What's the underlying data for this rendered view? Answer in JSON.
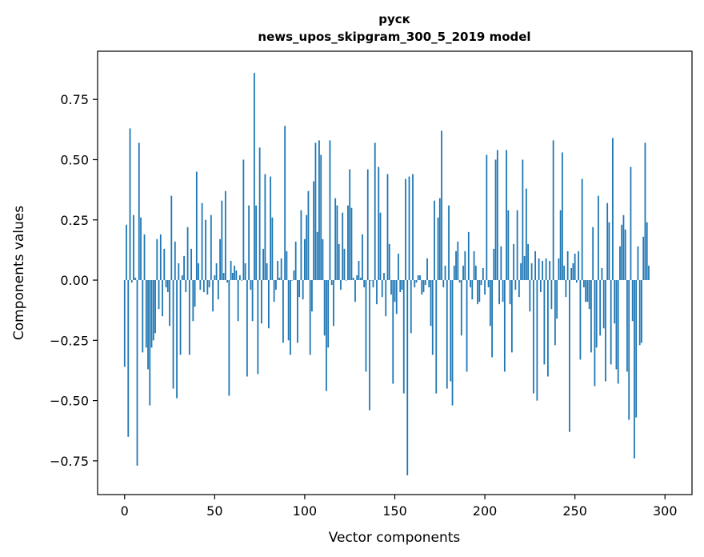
{
  "chart_data": {
    "type": "bar",
    "title": "руск",
    "subtitle": "news_upos_skipgram_300_5_2019 model",
    "xlabel": "Vector components",
    "ylabel": "Components values",
    "xlim": [
      -15,
      315
    ],
    "ylim": [
      -0.89,
      0.95
    ],
    "xticks": [
      0,
      50,
      100,
      150,
      200,
      250,
      300
    ],
    "yticks": [
      -0.75,
      -0.5,
      -0.25,
      0.0,
      0.25,
      0.5,
      0.75
    ],
    "xtick_labels": [
      "0",
      "50",
      "100",
      "150",
      "200",
      "250",
      "300"
    ],
    "ytick_labels": [
      "−0.75",
      "−0.50",
      "−0.25",
      "0.00",
      "0.25",
      "0.50",
      "0.75"
    ],
    "bar_color": "#1f77b4",
    "grid": false,
    "values": [
      -0.36,
      0.23,
      -0.65,
      0.63,
      -0.01,
      0.27,
      0.01,
      -0.77,
      0.57,
      0.26,
      -0.3,
      0.19,
      -0.28,
      -0.37,
      -0.52,
      -0.28,
      -0.25,
      -0.22,
      0.17,
      -0.12,
      0.19,
      -0.15,
      0.13,
      -0.03,
      -0.05,
      -0.19,
      0.35,
      -0.45,
      0.16,
      -0.49,
      0.07,
      -0.31,
      0.02,
      0.1,
      -0.05,
      0.22,
      -0.31,
      0.13,
      -0.17,
      -0.11,
      0.45,
      0.07,
      -0.04,
      0.32,
      -0.05,
      0.25,
      -0.06,
      -0.03,
      0.27,
      -0.13,
      0.02,
      0.07,
      -0.08,
      0.17,
      0.33,
      0.03,
      0.37,
      -0.01,
      -0.48,
      0.08,
      0.03,
      0.06,
      0.04,
      -0.17,
      0.02,
      0.0,
      0.5,
      0.07,
      -0.4,
      0.31,
      -0.04,
      -0.17,
      0.86,
      0.31,
      -0.39,
      0.55,
      -0.18,
      0.13,
      0.44,
      0.07,
      -0.2,
      0.43,
      0.26,
      -0.09,
      -0.04,
      0.08,
      0.01,
      0.09,
      -0.26,
      0.64,
      0.12,
      -0.25,
      -0.31,
      0.0,
      0.04,
      0.16,
      -0.26,
      -0.07,
      0.29,
      -0.08,
      0.17,
      0.27,
      0.37,
      -0.31,
      -0.13,
      0.41,
      0.57,
      0.2,
      0.58,
      0.52,
      0.17,
      -0.23,
      -0.46,
      -0.28,
      0.58,
      -0.02,
      -0.19,
      0.34,
      0.31,
      0.15,
      -0.04,
      0.28,
      0.13,
      0.0,
      0.31,
      0.46,
      0.3,
      0.01,
      -0.09,
      0.02,
      0.08,
      0.01,
      0.19,
      -0.03,
      -0.38,
      0.46,
      -0.54,
      0.0,
      -0.03,
      0.57,
      -0.1,
      0.47,
      0.28,
      -0.07,
      0.03,
      -0.15,
      0.44,
      0.15,
      -0.06,
      -0.43,
      -0.09,
      -0.14,
      0.11,
      -0.05,
      -0.04,
      -0.47,
      0.42,
      -0.81,
      0.43,
      -0.22,
      0.44,
      -0.03,
      -0.01,
      0.02,
      0.02,
      -0.06,
      -0.05,
      -0.02,
      0.09,
      -0.03,
      -0.19,
      -0.31,
      0.33,
      -0.47,
      0.26,
      0.34,
      0.62,
      -0.03,
      0.06,
      -0.45,
      0.31,
      -0.42,
      -0.52,
      0.06,
      0.12,
      0.16,
      -0.01,
      -0.23,
      0.06,
      0.12,
      -0.38,
      0.2,
      -0.03,
      -0.08,
      0.12,
      0.06,
      -0.1,
      -0.09,
      -0.02,
      0.05,
      -0.06,
      0.52,
      -0.03,
      -0.19,
      -0.32,
      0.13,
      0.5,
      0.54,
      -0.1,
      0.14,
      -0.09,
      -0.38,
      0.54,
      0.29,
      -0.1,
      -0.3,
      0.15,
      -0.04,
      0.29,
      -0.07,
      0.07,
      0.5,
      0.1,
      0.38,
      0.15,
      -0.13,
      0.07,
      -0.47,
      0.12,
      -0.5,
      0.09,
      -0.05,
      0.08,
      -0.35,
      0.09,
      -0.4,
      0.08,
      -0.12,
      0.58,
      -0.27,
      -0.16,
      0.09,
      0.29,
      0.53,
      0.06,
      -0.07,
      0.12,
      -0.63,
      0.05,
      0.07,
      0.11,
      -0.01,
      0.12,
      -0.33,
      0.42,
      -0.03,
      -0.09,
      -0.09,
      -0.12,
      -0.3,
      0.22,
      -0.44,
      -0.28,
      0.35,
      -0.23,
      0.05,
      -0.2,
      -0.42,
      0.32,
      0.24,
      -0.35,
      0.59,
      -0.18,
      -0.37,
      -0.43,
      0.14,
      0.23,
      0.27,
      0.21,
      -0.38,
      -0.58,
      0.47,
      -0.17,
      -0.74,
      -0.57,
      0.14,
      -0.27,
      -0.26,
      0.18,
      0.57,
      0.24,
      0.06
    ]
  }
}
